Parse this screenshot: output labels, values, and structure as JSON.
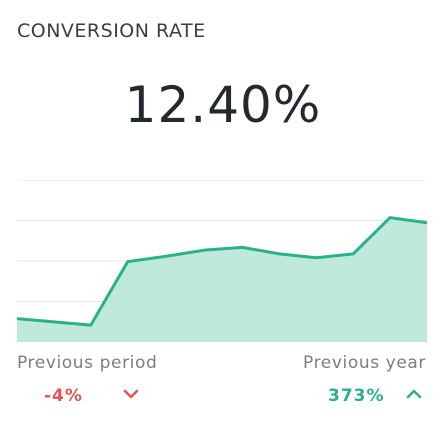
{
  "widget": {
    "title": "CONVERSION RATE",
    "value": "12.40%"
  },
  "comparison": {
    "previous_period": {
      "label": "Previous period",
      "delta": "-4%",
      "direction": "down",
      "color": "#e05656",
      "icon": "chevron-down-icon"
    },
    "previous_year": {
      "label": "Previous year",
      "delta": "373%",
      "direction": "up",
      "color": "#2cae8e",
      "icon": "chevron-up-icon"
    }
  },
  "colors": {
    "line": "#2bb08e",
    "fill": "#bfe9da",
    "grid": "#e6e6e6"
  },
  "chart_data": {
    "type": "area",
    "grid": true,
    "values": [
      0.18,
      0.13,
      0.62,
      0.66,
      0.71,
      0.73,
      0.68,
      0.65,
      0.68,
      0.96,
      0.92
    ]
  }
}
